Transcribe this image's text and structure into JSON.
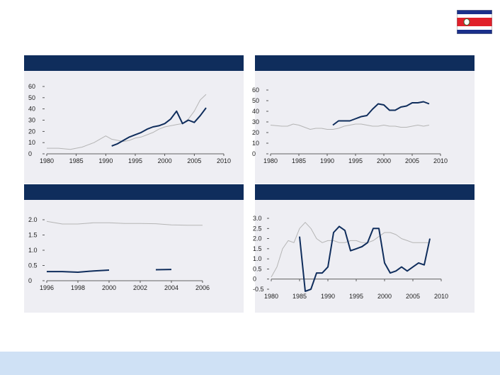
{
  "flag": {
    "name": "costa-rica-flag",
    "colors": {
      "blue": "#1a2f8a",
      "white": "#ffffff",
      "red": "#e0202a"
    }
  },
  "colors": {
    "header": "#0f2d5c",
    "panel_bg": "#eeeef3",
    "footer": "#cfe1f5",
    "series_primary": "#0f2d5c",
    "series_secondary": "#b5b5b5"
  },
  "chart_data": [
    {
      "type": "line",
      "title": "",
      "xlim": [
        1980,
        2010
      ],
      "ylim": [
        0,
        60
      ],
      "xticks": [
        1980,
        1985,
        1990,
        1995,
        2000,
        2005,
        2010
      ],
      "yticks": [
        0,
        10,
        20,
        30,
        40,
        50,
        60
      ],
      "xtick_labels": [
        "1980",
        "1985",
        "1990",
        "1995",
        "2000",
        "2005",
        "2010"
      ],
      "ytick_labels": [
        "0",
        "10",
        "20",
        "30",
        "40",
        "50",
        "60"
      ],
      "series": [
        {
          "name": "",
          "style": "secondary",
          "x": [
            1980,
            1982,
            1984,
            1986,
            1987,
            1988,
            1989,
            1990,
            1991,
            1992,
            1993,
            1994,
            1995,
            1996,
            1997,
            1998,
            1999,
            2000,
            2001,
            2002,
            2003,
            2004,
            2005,
            2006,
            2007
          ],
          "y": [
            5,
            5,
            4,
            6,
            8,
            10,
            13,
            16,
            13,
            12,
            11,
            12,
            14,
            15,
            17,
            19,
            22,
            24,
            25,
            26,
            27,
            31,
            38,
            48,
            53
          ]
        },
        {
          "name": "",
          "style": "primary",
          "x": [
            1991,
            1992,
            1993,
            1994,
            1995,
            1996,
            1997,
            1998,
            1999,
            2000,
            2001,
            2002,
            2003,
            2004,
            2005,
            2006,
            2007
          ],
          "y": [
            7,
            9,
            12,
            15,
            17,
            19,
            22,
            24,
            25,
            27,
            31,
            38,
            27,
            30,
            28,
            34,
            41
          ]
        }
      ]
    },
    {
      "type": "line",
      "title": "",
      "xlim": [
        1980,
        2010
      ],
      "ylim": [
        0,
        60
      ],
      "xticks": [
        1980,
        1985,
        1990,
        1995,
        2000,
        2005,
        2010
      ],
      "yticks": [
        0,
        10,
        20,
        30,
        40,
        50,
        60
      ],
      "xtick_labels": [
        "1980",
        "1985",
        "1990",
        "1995",
        "2000",
        "2005",
        "2010"
      ],
      "ytick_labels": [
        "0",
        "10",
        "20",
        "30",
        "40",
        "50",
        "60"
      ],
      "series": [
        {
          "name": "",
          "style": "secondary",
          "x": [
            1980,
            1982,
            1983,
            1984,
            1985,
            1986,
            1987,
            1988,
            1989,
            1990,
            1991,
            1992,
            1993,
            1994,
            1995,
            1996,
            1997,
            1998,
            1999,
            2000,
            2001,
            2002,
            2003,
            2004,
            2005,
            2006,
            2007,
            2008
          ],
          "y": [
            27,
            26,
            26,
            28,
            27,
            25,
            23,
            24,
            24,
            23,
            23,
            24,
            26,
            27,
            28,
            28,
            27,
            26,
            26,
            27,
            26,
            26,
            25,
            25,
            26,
            27,
            26,
            27
          ]
        },
        {
          "name": "",
          "style": "primary",
          "x": [
            1991,
            1992,
            1993,
            1994,
            1995,
            1996,
            1997,
            1998,
            1999,
            2000,
            2001,
            2002,
            2003,
            2004,
            2005,
            2006,
            2007,
            2008
          ],
          "y": [
            27,
            31,
            31,
            31,
            33,
            35,
            36,
            42,
            47,
            46,
            41,
            41,
            44,
            45,
            48,
            48,
            49,
            47
          ]
        }
      ]
    },
    {
      "type": "line",
      "title": "",
      "xlim": [
        1996,
        2006
      ],
      "ylim": [
        0,
        2.0
      ],
      "xticks": [
        1996,
        1998,
        2000,
        2002,
        2004,
        2006
      ],
      "yticks": [
        0,
        0.5,
        1.0,
        1.5,
        2.0
      ],
      "xtick_labels": [
        "1996",
        "1998",
        "2000",
        "2002",
        "2004",
        "2006"
      ],
      "ytick_labels": [
        "0",
        "0.5",
        "1.0",
        "1.5",
        "2.0"
      ],
      "series": [
        {
          "name": "",
          "style": "secondary",
          "x": [
            1996,
            1997,
            1998,
            1999,
            2000,
            2001,
            2002,
            2003,
            2004,
            2005,
            2006
          ],
          "y": [
            1.95,
            1.86,
            1.86,
            1.9,
            1.9,
            1.88,
            1.88,
            1.87,
            1.83,
            1.82,
            1.82
          ]
        },
        {
          "name": "",
          "style": "primary",
          "x": [
            1996,
            1997,
            1998,
            1999,
            2000
          ],
          "y": [
            0.3,
            0.3,
            0.28,
            0.32,
            0.35
          ]
        },
        {
          "name": "",
          "style": "primary",
          "x": [
            2003,
            2004
          ],
          "y": [
            0.36,
            0.37
          ]
        }
      ]
    },
    {
      "type": "line",
      "title": "",
      "xlim": [
        1980,
        2010
      ],
      "ylim": [
        -0.5,
        3.0
      ],
      "xticks": [
        1980,
        1985,
        1990,
        1995,
        2000,
        2005,
        2010
      ],
      "yticks": [
        -0.5,
        0,
        0.5,
        1.0,
        1.5,
        2.0,
        2.5,
        3.0
      ],
      "xtick_labels": [
        "1980",
        "1985",
        "1990",
        "1995",
        "2000",
        "2005",
        "2010"
      ],
      "ytick_labels": [
        "-0.5",
        "0",
        "0.5",
        "1.0",
        "1.5",
        "2.0",
        "2.5",
        "3.0"
      ],
      "series": [
        {
          "name": "",
          "style": "secondary",
          "x": [
            1980,
            1981,
            1982,
            1983,
            1984,
            1985,
            1986,
            1987,
            1988,
            1989,
            1990,
            1991,
            1992,
            1993,
            1994,
            1995,
            1996,
            1997,
            1998,
            1999,
            2000,
            2001,
            2002,
            2003,
            2004,
            2005,
            2006,
            2007,
            2008
          ],
          "y": [
            0.1,
            0.6,
            1.5,
            1.9,
            1.8,
            2.5,
            2.8,
            2.5,
            2.0,
            1.8,
            1.9,
            1.9,
            1.8,
            1.8,
            1.9,
            1.9,
            1.8,
            1.8,
            1.9,
            2.1,
            2.3,
            2.3,
            2.2,
            2.0,
            1.9,
            1.8,
            1.8,
            1.8,
            1.8
          ]
        },
        {
          "name": "",
          "style": "primary",
          "x": [
            1985,
            1986,
            1987,
            1988,
            1989,
            1990,
            1991,
            1992,
            1993,
            1994,
            1995,
            1996,
            1997,
            1998,
            1999,
            2000,
            2001,
            2002,
            2003,
            2004,
            2005,
            2006,
            2007,
            2008
          ],
          "y": [
            2.1,
            -0.6,
            -0.5,
            0.3,
            0.3,
            0.6,
            2.3,
            2.6,
            2.4,
            1.4,
            1.5,
            1.6,
            1.8,
            2.5,
            2.5,
            0.8,
            0.3,
            0.4,
            0.6,
            0.4,
            0.6,
            0.8,
            0.7,
            2.0
          ]
        }
      ]
    }
  ]
}
